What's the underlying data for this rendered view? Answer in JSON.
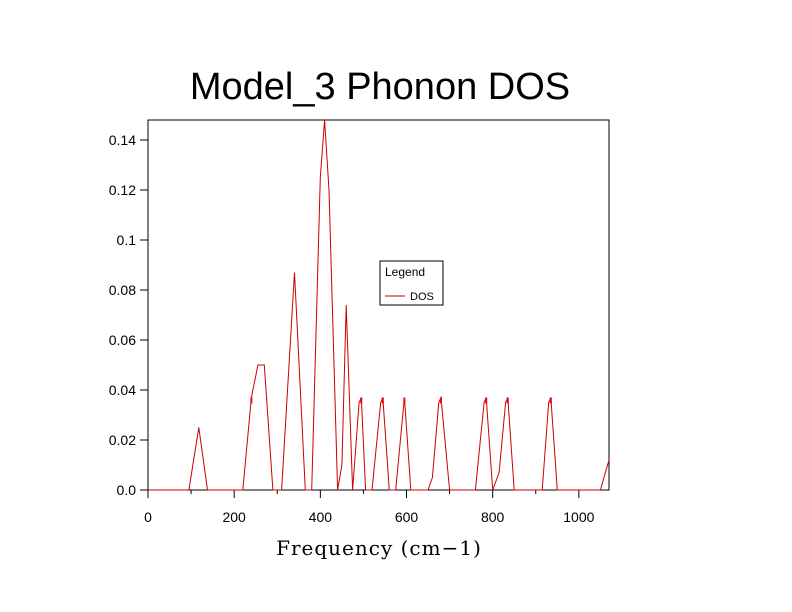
{
  "chart_data": {
    "type": "line",
    "title": "Model_3 Phonon DOS",
    "xlabel": "Frequency (cm−1)",
    "ylabel": "",
    "xlim": [
      0,
      1070
    ],
    "ylim": [
      0,
      0.148
    ],
    "xticks": [
      0,
      200,
      400,
      600,
      800,
      1000
    ],
    "xtick_labels": [
      "0",
      "200",
      "400",
      "600",
      "800",
      "1000"
    ],
    "yticks": [
      0,
      0.02,
      0.04,
      0.06,
      0.08,
      0.1,
      0.12,
      0.14
    ],
    "ytick_labels": [
      "0.0",
      "0.02",
      "0.04",
      "0.06",
      "0.08",
      "0.1",
      "0.12",
      "0.14"
    ],
    "legend": {
      "title": "Legend",
      "position": "center-right",
      "entries": [
        "DOS"
      ]
    },
    "colors": {
      "DOS": "#cc0000",
      "axes": "#000000"
    },
    "series": [
      {
        "name": "DOS",
        "x": [
          0,
          95,
          118,
          138,
          220,
          240,
          255,
          270,
          290,
          310,
          340,
          365,
          380,
          400,
          410,
          420,
          440,
          450,
          460,
          475,
          490,
          495,
          505,
          520,
          540,
          545,
          560,
          575,
          595,
          610,
          625,
          650,
          660,
          675,
          680,
          700,
          760,
          780,
          785,
          800,
          815,
          830,
          835,
          850,
          915,
          930,
          935,
          950,
          1050,
          1070
        ],
        "y": [
          0,
          0,
          0.025,
          0,
          0,
          0.037,
          0.05,
          0.05,
          0,
          0,
          0.087,
          0,
          0,
          0.125,
          0.148,
          0.12,
          0,
          0.01,
          0.074,
          0,
          0.035,
          0.037,
          0,
          0,
          0.035,
          0.037,
          0,
          0,
          0.037,
          0,
          0,
          0,
          0.005,
          0.035,
          0.037,
          0,
          0,
          0.035,
          0.037,
          0,
          0.007,
          0.035,
          0.037,
          0,
          0,
          0.035,
          0.037,
          0,
          0,
          0.012
        ]
      }
    ]
  }
}
